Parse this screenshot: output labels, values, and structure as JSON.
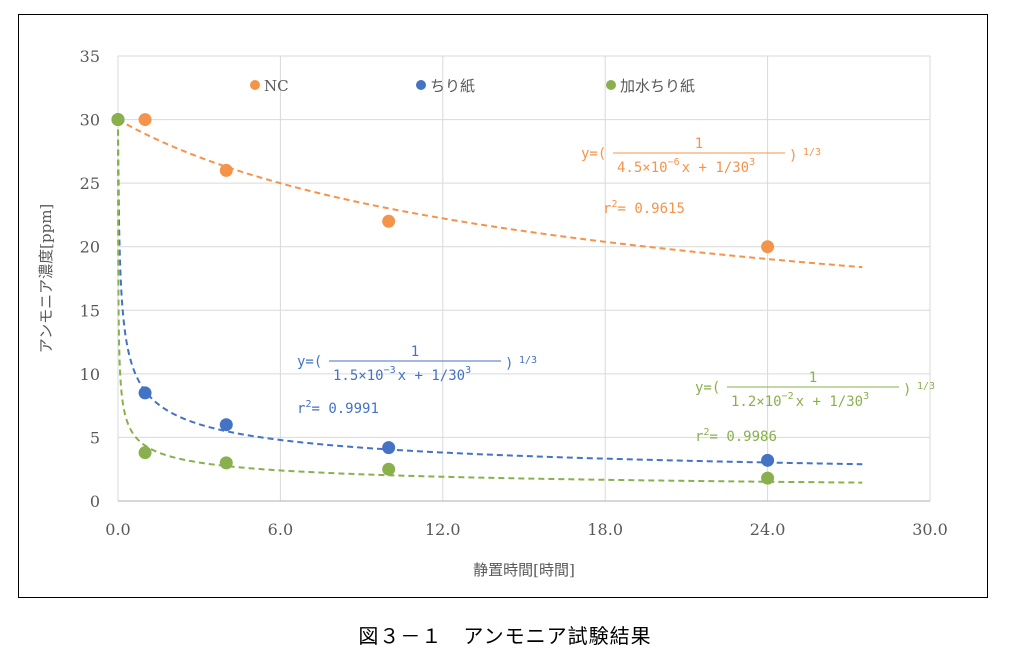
{
  "caption": "図３－１　アンモニア試験結果",
  "chart_data": {
    "type": "scatter",
    "xlabel": "静置時間[時間]",
    "ylabel": "アンモニア濃度[ppm]",
    "xlim": [
      0,
      30
    ],
    "ylim": [
      0,
      35
    ],
    "x_ticks": [
      "0.0",
      "6.0",
      "12.0",
      "18.0",
      "24.0",
      "30.0"
    ],
    "y_ticks": [
      "0",
      "5",
      "10",
      "15",
      "20",
      "25",
      "30",
      "35"
    ],
    "grid": true,
    "legend_position": "top",
    "series": [
      {
        "name": "NC",
        "color": "#f4944b",
        "x": [
          0,
          1,
          4,
          10,
          24
        ],
        "y": [
          30,
          30,
          26,
          22,
          20
        ],
        "trend_k": 4.5e-06,
        "eq_prefix": "y=(",
        "eq_num": "1",
        "eq_den_a": "4.5×10",
        "eq_den_exp": "−6",
        "eq_den_b": "x + 1/30",
        "eq_den_exp2": "3",
        "eq_suffix": ")",
        "eq_power": "1/3",
        "r2_label": "r",
        "r2_sup": "2",
        "r2_value": "= 0.9615"
      },
      {
        "name": "ちり紙",
        "color": "#4472c4",
        "x": [
          0,
          1,
          4,
          10,
          24
        ],
        "y": [
          30,
          8.5,
          6,
          4.2,
          3.2
        ],
        "trend_k": 0.0015,
        "eq_prefix": "y=(",
        "eq_num": "1",
        "eq_den_a": "1.5×10",
        "eq_den_exp": "−3",
        "eq_den_b": "x + 1/30",
        "eq_den_exp2": "3",
        "eq_suffix": ")",
        "eq_power": "1/3",
        "r2_label": "r",
        "r2_sup": "2",
        "r2_value": "= 0.9991"
      },
      {
        "name": "加水ちり紙",
        "color": "#8ab04e",
        "x": [
          0,
          1,
          4,
          10,
          24
        ],
        "y": [
          30,
          3.8,
          3.0,
          2.5,
          1.8
        ],
        "trend_k": 0.012,
        "eq_prefix": "y=(",
        "eq_num": "1",
        "eq_den_a": "1.2×10",
        "eq_den_exp": "−2",
        "eq_den_b": "x + 1/30",
        "eq_den_exp2": "3",
        "eq_suffix": ")",
        "eq_power": "1/3",
        "r2_label": "r",
        "r2_sup": "2",
        "r2_value": "= 0.9986"
      }
    ]
  }
}
